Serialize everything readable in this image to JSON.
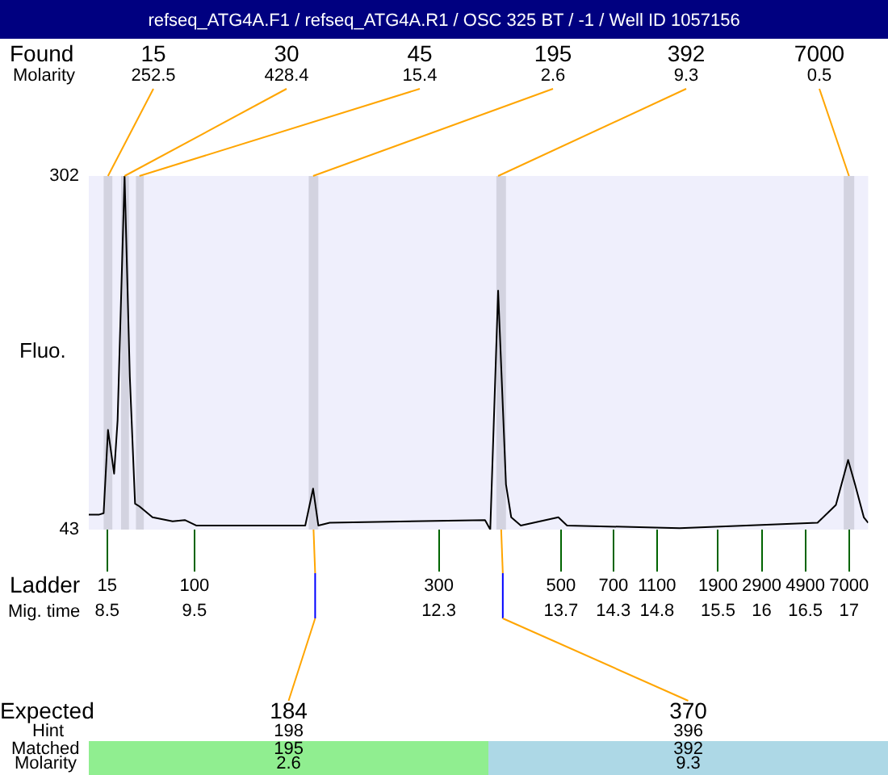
{
  "chart_data": {
    "type": "line",
    "title": "refseq_ATG4A.F1 / refseq_ATG4A.R1 / OSC 325 BT / -1 / Well ID 1057156",
    "ylabel": "Fluo.",
    "x": [
      8.29,
      8.41,
      8.46,
      8.51,
      8.58,
      8.62,
      8.7,
      8.76,
      8.82,
      8.87,
      9.02,
      9.25,
      9.39,
      9.52,
      10.77,
      10.86,
      10.92,
      11.05,
      12.83,
      12.89,
      12.98,
      13.07,
      13.13,
      13.24,
      13.67,
      13.77,
      15.06,
      16.64,
      16.85,
      16.99,
      17.07,
      17.17,
      17.22
    ],
    "series": [
      {
        "color": "#000000",
        "values": [
          54,
          54,
          55,
          116,
          84,
          123,
          302,
          155,
          62,
          60,
          52,
          49,
          50,
          46,
          46,
          73,
          46,
          48,
          50,
          43,
          218,
          76,
          52,
          46,
          52,
          46,
          44,
          48,
          61,
          94,
          76,
          52,
          48
        ]
      }
    ],
    "xlim": [
      8.29,
      17.22
    ],
    "xticks": [
      8.5,
      9.5,
      12.3,
      13.7,
      14.3,
      14.8,
      15.5,
      16,
      16.5,
      17
    ],
    "ylim": [
      43,
      302
    ],
    "yticks": [
      43,
      302
    ],
    "grid": false,
    "legend": false,
    "marker": "none",
    "bands": [
      {
        "axis": "x",
        "from": 8.46,
        "to": 8.56,
        "label": "15",
        "color": "#d3d3e0"
      },
      {
        "axis": "x",
        "from": 8.66,
        "to": 8.75,
        "label": "30",
        "color": "#d3d3e0"
      },
      {
        "axis": "x",
        "from": 8.83,
        "to": 8.92,
        "label": "45",
        "color": "#d3d3e0"
      },
      {
        "axis": "x",
        "from": 10.81,
        "to": 10.92,
        "label": "195",
        "color": "#d3d3e0"
      },
      {
        "axis": "x",
        "from": 12.96,
        "to": 13.07,
        "label": "392",
        "color": "#d3d3e0"
      },
      {
        "axis": "x",
        "from": 16.94,
        "to": 17.06,
        "label": "7000",
        "color": "#d3d3e0"
      }
    ],
    "annotations": [
      "Found",
      "Molarity",
      "Ladder",
      "Mig. time",
      "Expected",
      "Hint",
      "Matched",
      "Molarity",
      {
        "text": "252.5",
        "x": 8.51,
        "y": 302
      },
      {
        "text": "428.4",
        "x": 8.7,
        "y": 302
      },
      {
        "text": "15.4",
        "x": 8.87,
        "y": 302
      },
      {
        "text": "2.6",
        "x": 10.86,
        "y": 302
      },
      {
        "text": "9.3",
        "x": 12.98,
        "y": 302
      },
      {
        "text": "0.5",
        "x": 17.0,
        "y": 302
      },
      "184",
      "198",
      "195",
      "2.6",
      "370",
      "396",
      "392",
      "9.3",
      "15",
      "100",
      "300",
      "500",
      "700",
      "1100",
      "1900",
      "2900",
      "4900",
      "7000"
    ]
  }
}
